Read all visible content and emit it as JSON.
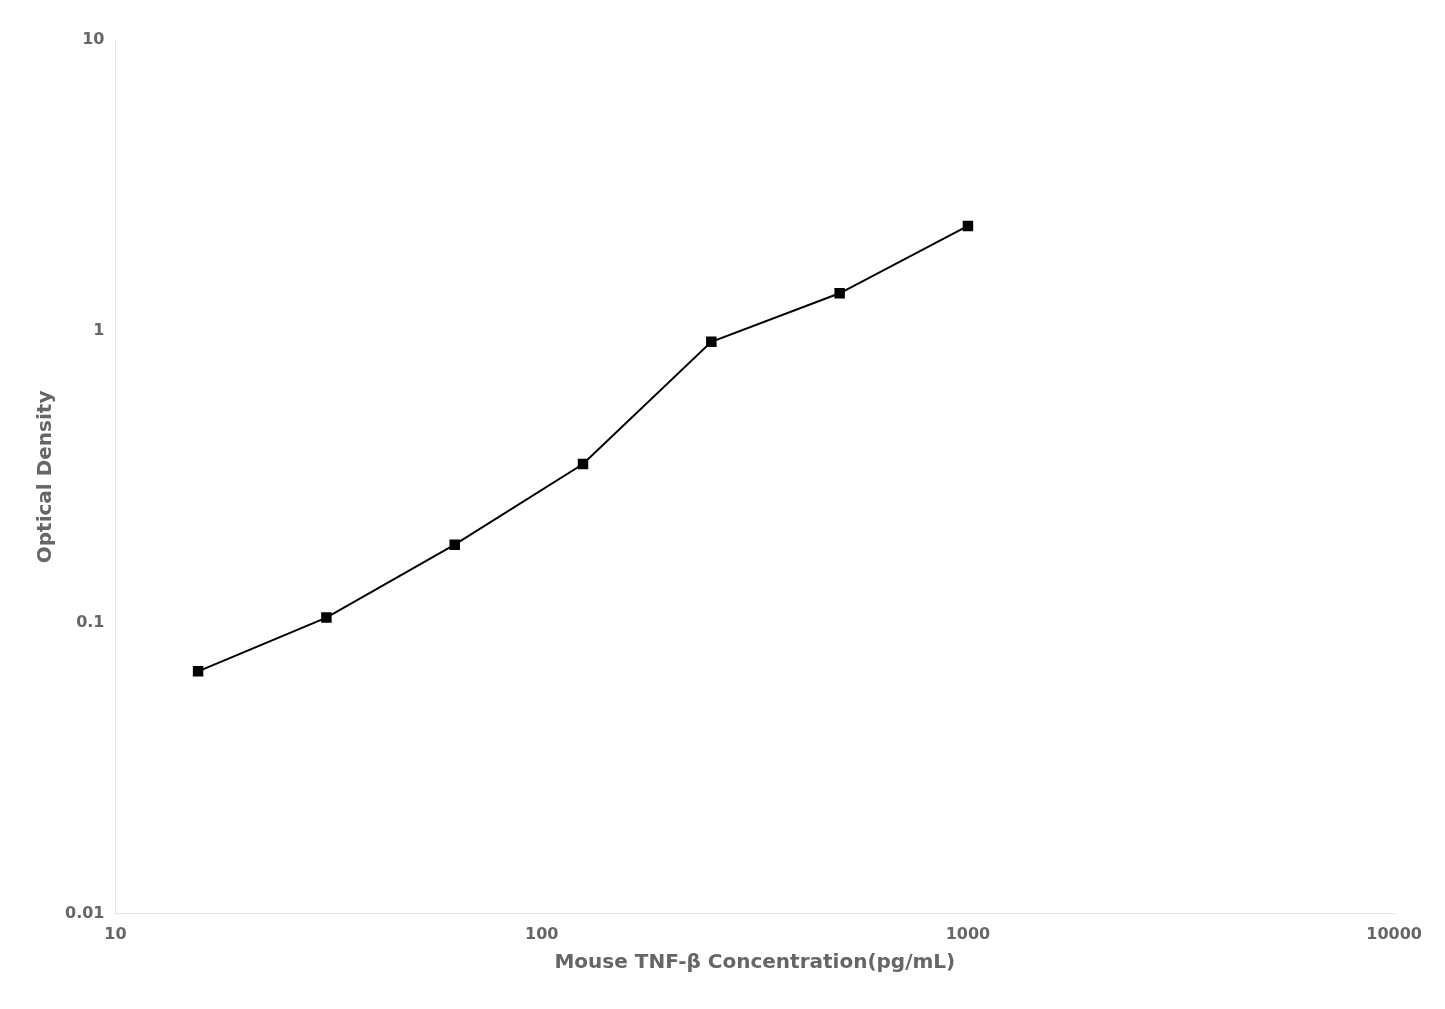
{
  "chart_data": {
    "type": "line",
    "x": [
      15.625,
      31.25,
      62.5,
      125,
      250,
      500,
      1000
    ],
    "values": [
      0.068,
      0.104,
      0.185,
      0.35,
      0.92,
      1.35,
      2.3
    ],
    "color": "#000000",
    "marker": "square",
    "log": true,
    "xlabel": "Mouse TNF-β Concentration(pg/mL)",
    "ylabel": "Optical Density",
    "xlim": [
      10,
      10000
    ],
    "ylim": [
      0.01,
      10
    ],
    "xticks": [
      10,
      100,
      1000,
      10000
    ],
    "yticks": [
      0.01,
      0.1,
      1,
      10
    ],
    "grid": false
  }
}
